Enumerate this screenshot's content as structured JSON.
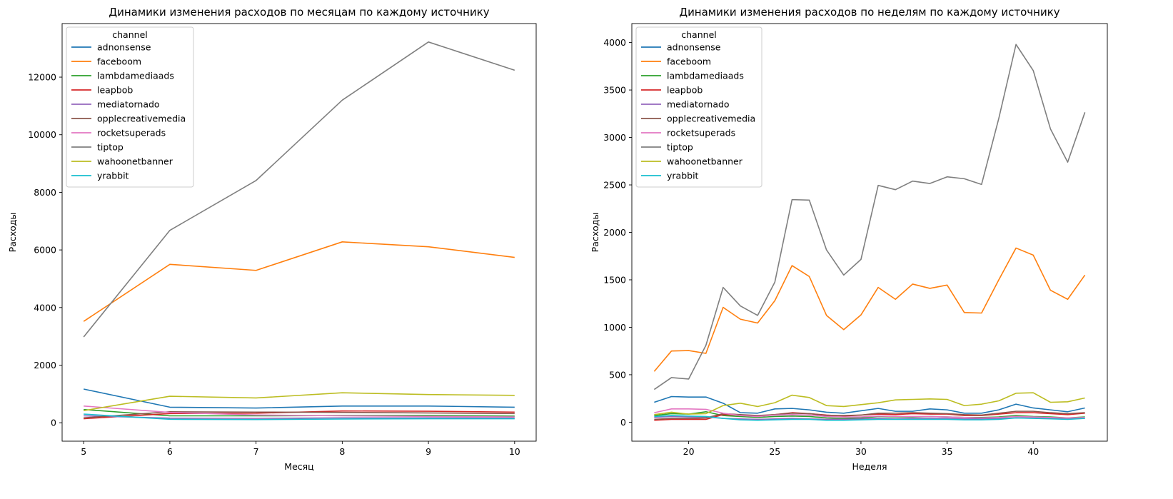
{
  "chart_data": [
    {
      "type": "line",
      "title": "Динамики изменения расходов по месяцам по каждому источнику",
      "xlabel": "Месяц",
      "ylabel": "Расходы",
      "x": [
        5,
        6,
        7,
        8,
        9,
        10
      ],
      "xlim": [
        4.75,
        10.25
      ],
      "ylim": [
        -640,
        13860
      ],
      "xticks": [
        5,
        6,
        7,
        8,
        9,
        10
      ],
      "yticks": [
        0,
        2000,
        4000,
        6000,
        8000,
        10000,
        12000
      ],
      "legend": {
        "title": "channel",
        "position": "top-left"
      },
      "series": [
        {
          "name": "adnonsense",
          "color": "#1f77b4",
          "values": [
            1170,
            540,
            510,
            580,
            580,
            540
          ]
        },
        {
          "name": "faceboom",
          "color": "#ff7f0e",
          "values": [
            3520,
            5500,
            5290,
            6280,
            6110,
            5740
          ]
        },
        {
          "name": "lambdamediaads",
          "color": "#2ca02c",
          "values": [
            460,
            240,
            240,
            250,
            250,
            230
          ]
        },
        {
          "name": "leapbob",
          "color": "#d62728",
          "values": [
            140,
            320,
            330,
            410,
            400,
            370
          ]
        },
        {
          "name": "mediatornado",
          "color": "#9467bd",
          "values": [
            240,
            160,
            150,
            170,
            170,
            160
          ]
        },
        {
          "name": "opplecreativemedia",
          "color": "#8c564b",
          "values": [
            170,
            380,
            370,
            360,
            340,
            320
          ]
        },
        {
          "name": "rocketsuperads",
          "color": "#e377c2",
          "values": [
            580,
            360,
            270,
            240,
            220,
            200
          ]
        },
        {
          "name": "tiptop",
          "color": "#7f7f7f",
          "values": [
            2980,
            6680,
            8410,
            11200,
            13220,
            12240
          ]
        },
        {
          "name": "wahoonetbanner",
          "color": "#bcbd22",
          "values": [
            420,
            920,
            860,
            1040,
            980,
            950
          ]
        },
        {
          "name": "yrabbit",
          "color": "#17becf",
          "values": [
            300,
            120,
            110,
            130,
            140,
            140
          ]
        }
      ]
    },
    {
      "type": "line",
      "title": "Динамики изменения расходов по неделям по каждому источнику",
      "xlabel": "Неделя",
      "ylabel": "Расходы",
      "x": [
        18,
        19,
        20,
        21,
        22,
        23,
        24,
        25,
        26,
        27,
        28,
        29,
        30,
        31,
        32,
        33,
        34,
        35,
        36,
        37,
        38,
        39,
        40,
        41,
        42,
        43
      ],
      "xlim": [
        16.7,
        44.3
      ],
      "ylim": [
        -200,
        4200
      ],
      "xticks": [
        20,
        25,
        30,
        35,
        40
      ],
      "yticks": [
        0,
        500,
        1000,
        1500,
        2000,
        2500,
        3000,
        3500,
        4000
      ],
      "legend": {
        "title": "channel",
        "position": "top-left"
      },
      "series": [
        {
          "name": "adnonsense",
          "color": "#1f77b4",
          "values": [
            210,
            270,
            265,
            265,
            200,
            100,
            95,
            140,
            145,
            130,
            105,
            95,
            120,
            145,
            115,
            115,
            140,
            130,
            95,
            95,
            130,
            190,
            150,
            130,
            110,
            150
          ]
        },
        {
          "name": "faceboom",
          "color": "#ff7f0e",
          "values": [
            535,
            750,
            755,
            725,
            1210,
            1085,
            1045,
            1280,
            1650,
            1535,
            1125,
            975,
            1130,
            1420,
            1295,
            1455,
            1410,
            1445,
            1155,
            1150,
            1500,
            1835,
            1760,
            1390,
            1295,
            1550
          ]
        },
        {
          "name": "lambdamediaads",
          "color": "#2ca02c",
          "values": [
            70,
            90,
            85,
            110,
            70,
            60,
            50,
            60,
            65,
            60,
            45,
            40,
            45,
            60,
            55,
            55,
            60,
            55,
            50,
            50,
            55,
            70,
            60,
            55,
            45,
            55
          ]
        },
        {
          "name": "leapbob",
          "color": "#d62728",
          "values": [
            20,
            30,
            30,
            30,
            80,
            75,
            65,
            80,
            100,
            90,
            75,
            65,
            75,
            85,
            80,
            90,
            85,
            85,
            70,
            70,
            85,
            100,
            100,
            90,
            80,
            95
          ]
        },
        {
          "name": "mediatornado",
          "color": "#9467bd",
          "values": [
            50,
            60,
            55,
            55,
            40,
            35,
            30,
            35,
            40,
            35,
            30,
            30,
            35,
            40,
            35,
            40,
            40,
            40,
            35,
            35,
            40,
            45,
            45,
            40,
            35,
            40
          ]
        },
        {
          "name": "opplecreativemedia",
          "color": "#8c564b",
          "values": [
            30,
            40,
            40,
            45,
            90,
            80,
            70,
            80,
            95,
            90,
            70,
            70,
            75,
            95,
            95,
            100,
            95,
            90,
            80,
            75,
            95,
            115,
            115,
            100,
            90,
            100
          ]
        },
        {
          "name": "rocketsuperads",
          "color": "#e377c2",
          "values": [
            100,
            140,
            140,
            135,
            95,
            70,
            60,
            75,
            80,
            75,
            60,
            55,
            55,
            65,
            60,
            60,
            60,
            55,
            50,
            45,
            50,
            60,
            55,
            50,
            45,
            50
          ]
        },
        {
          "name": "tiptop",
          "color": "#7f7f7f",
          "values": [
            345,
            470,
            455,
            810,
            1420,
            1225,
            1125,
            1475,
            2345,
            2340,
            1815,
            1550,
            1715,
            2495,
            2450,
            2540,
            2515,
            2585,
            2565,
            2505,
            3200,
            3980,
            3705,
            3090,
            2740,
            3265
          ]
        },
        {
          "name": "wahoonetbanner",
          "color": "#bcbd22",
          "values": [
            80,
            105,
            85,
            90,
            175,
            200,
            165,
            205,
            285,
            260,
            175,
            165,
            185,
            205,
            235,
            240,
            245,
            240,
            175,
            190,
            225,
            305,
            310,
            210,
            215,
            255
          ]
        },
        {
          "name": "yrabbit",
          "color": "#17becf",
          "values": [
            60,
            70,
            65,
            60,
            40,
            25,
            20,
            25,
            30,
            30,
            20,
            20,
            25,
            30,
            30,
            30,
            30,
            30,
            25,
            25,
            30,
            45,
            40,
            35,
            30,
            40
          ]
        }
      ]
    }
  ]
}
